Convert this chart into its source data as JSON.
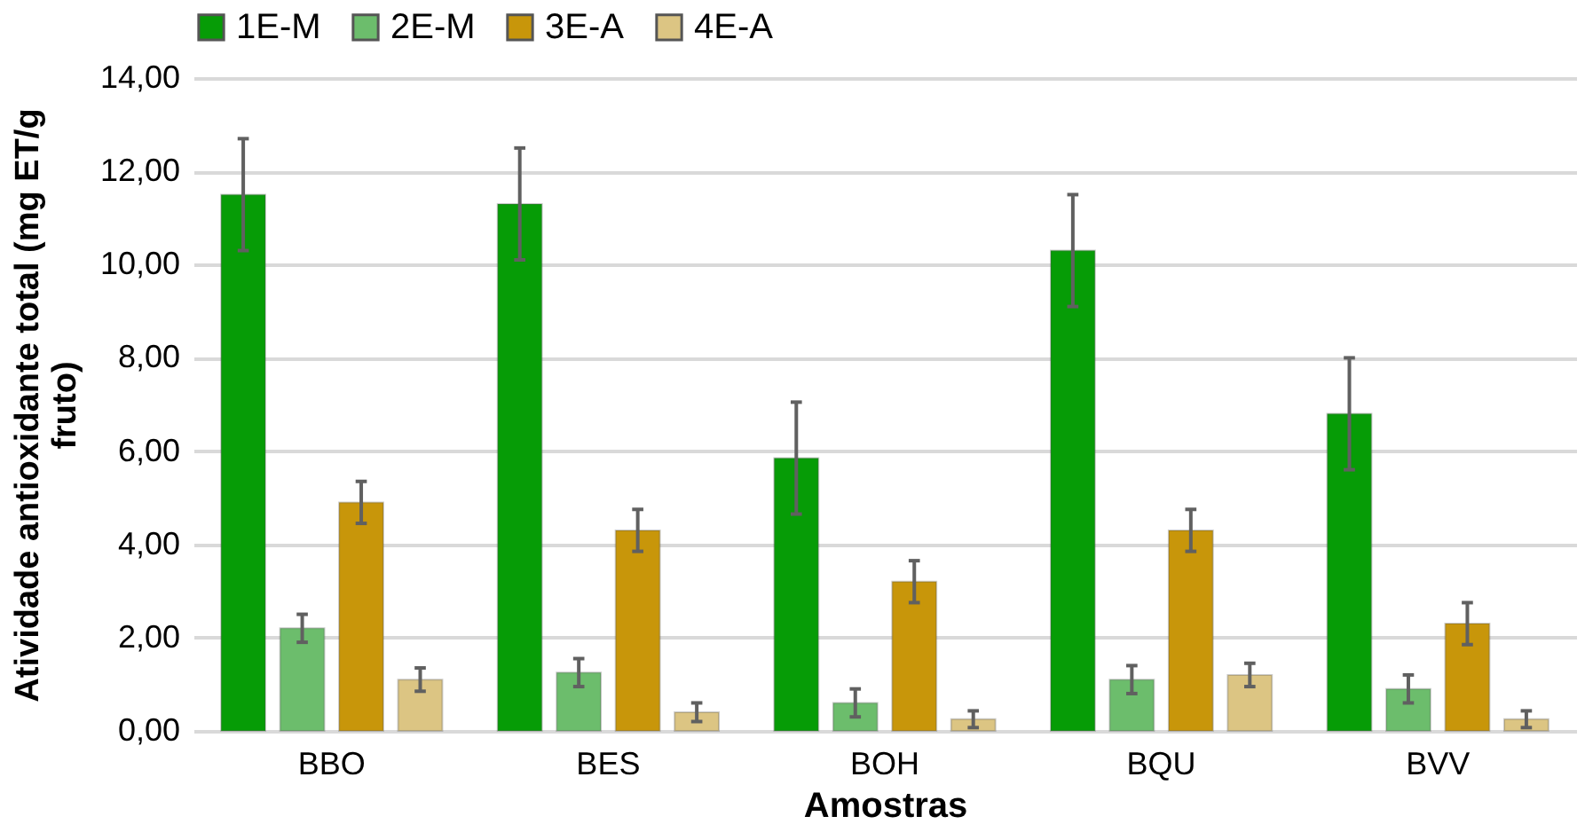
{
  "chart_data": {
    "type": "bar",
    "xlabel": "Amostras",
    "ylabel": "Atividade antioxidante total (mg ET/g fruto)",
    "categories": [
      "BBO",
      "BES",
      "BOH",
      "BQU",
      "BVV"
    ],
    "series": [
      {
        "name": "1E-M",
        "color": "#069c06",
        "values": [
          11.5,
          11.3,
          5.85,
          10.3,
          6.8
        ],
        "errors": [
          1.2,
          1.2,
          1.2,
          1.2,
          1.2
        ]
      },
      {
        "name": "2E-M",
        "color": "#6cbd6c",
        "values": [
          2.2,
          1.25,
          0.6,
          1.1,
          0.9
        ],
        "errors": [
          0.3,
          0.3,
          0.3,
          0.3,
          0.3
        ]
      },
      {
        "name": "3E-A",
        "color": "#c8960a",
        "values": [
          4.9,
          4.3,
          3.2,
          4.3,
          2.3
        ],
        "errors": [
          0.45,
          0.45,
          0.45,
          0.45,
          0.45
        ]
      },
      {
        "name": "4E-A",
        "color": "#dcc583",
        "values": [
          1.1,
          0.4,
          0.25,
          1.2,
          0.25
        ],
        "errors": [
          0.25,
          0.2,
          0.18,
          0.25,
          0.18
        ]
      }
    ],
    "ylim": [
      0,
      14
    ],
    "yticks": [
      {
        "value": 0,
        "label": "0,00"
      },
      {
        "value": 2,
        "label": "2,00"
      },
      {
        "value": 4,
        "label": "4,00"
      },
      {
        "value": 6,
        "label": "6,00"
      },
      {
        "value": 8,
        "label": "8,00"
      },
      {
        "value": 10,
        "label": "10,00"
      },
      {
        "value": 12,
        "label": "12,00"
      },
      {
        "value": 14,
        "label": "14,00"
      }
    ],
    "grid": "y",
    "legend": "top"
  }
}
